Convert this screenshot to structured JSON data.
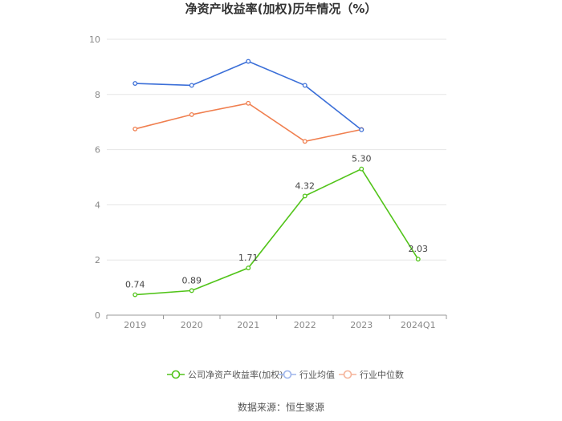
{
  "chart_data": {
    "type": "line",
    "title": "净资产收益率(加权)历年情况（%）",
    "categories": [
      "2019",
      "2020",
      "2021",
      "2022",
      "2023",
      "2024Q1"
    ],
    "ylim": [
      0,
      10
    ],
    "yticks": [
      0,
      2,
      4,
      6,
      8,
      10
    ],
    "grid": true,
    "legend_position": "bottom",
    "series": [
      {
        "name": "公司净资产收益率(加权)",
        "color": "#52c41a",
        "values": [
          0.74,
          0.89,
          1.71,
          4.32,
          5.3,
          2.03
        ],
        "labels": [
          "0.74",
          "0.89",
          "1.71",
          "4.32",
          "5.30",
          "2.03"
        ]
      },
      {
        "name": "行业均值",
        "color": "#3b6fd8",
        "values": [
          8.4,
          8.33,
          9.2,
          8.33,
          6.72,
          null
        ]
      },
      {
        "name": "行业中位数",
        "color": "#f07f4f",
        "values": [
          6.75,
          7.27,
          7.68,
          6.3,
          6.73,
          null
        ]
      }
    ],
    "source": "数据来源：恒生聚源"
  }
}
